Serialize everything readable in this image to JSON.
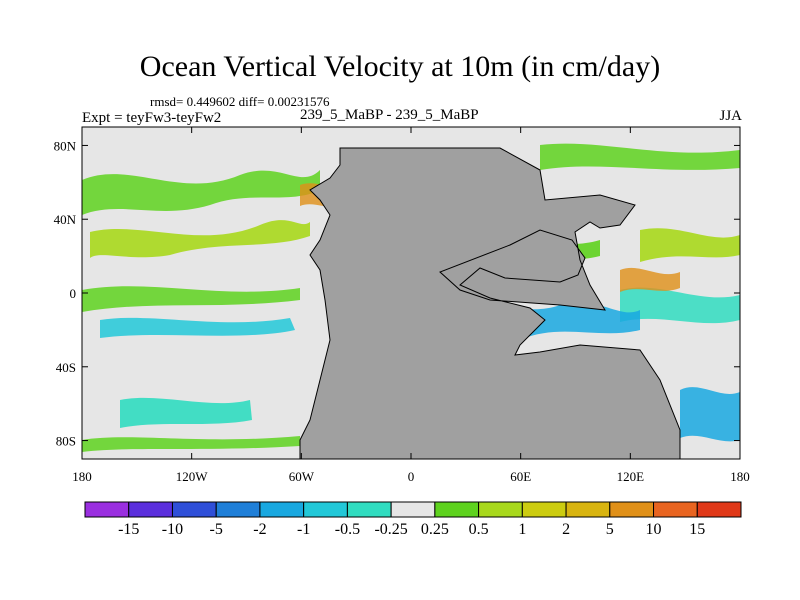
{
  "title": "Ocean Vertical Velocity at 10m (in cm/day)",
  "stats": "rmsd= 0.449602 diff= 0.00231576",
  "left_label": "Expt = teyFw3-teyFw2",
  "center_label": "239_5_MaBP - 239_5_MaBP",
  "right_label": "JJA",
  "map": {
    "lon_range": [
      -180,
      180
    ],
    "lat_range": [
      -90,
      90
    ],
    "x_ticks": [
      {
        "lon": -180,
        "label": "180"
      },
      {
        "lon": -120,
        "label": "120W"
      },
      {
        "lon": -60,
        "label": "60W"
      },
      {
        "lon": 0,
        "label": "0"
      },
      {
        "lon": 60,
        "label": "60E"
      },
      {
        "lon": 120,
        "label": "120E"
      },
      {
        "lon": 180,
        "label": "180"
      }
    ],
    "y_ticks": [
      {
        "lat": 80,
        "label": "80N"
      },
      {
        "lat": 40,
        "label": "40N"
      },
      {
        "lat": 0,
        "label": "0"
      },
      {
        "lat": -40,
        "label": "40S"
      },
      {
        "lat": -80,
        "label": "80S"
      }
    ],
    "land_color": "#a0a0a0",
    "ocean_color": "#e6e6e6"
  },
  "colorbar": {
    "colors": [
      "#9a2fe0",
      "#5b2fdc",
      "#2f4fd8",
      "#1f7fd8",
      "#19a8e0",
      "#22c8d8",
      "#30dcc0",
      "#e6e6e6",
      "#5ed21e",
      "#a8d81c",
      "#cccc10",
      "#d8b410",
      "#e09018",
      "#e86420",
      "#e03818"
    ],
    "labels": [
      "-15",
      "-10",
      "-5",
      "-2",
      "-1",
      "-0.5",
      "-0.25",
      "0.25",
      "0.5",
      "1",
      "2",
      "5",
      "10",
      "15"
    ]
  }
}
